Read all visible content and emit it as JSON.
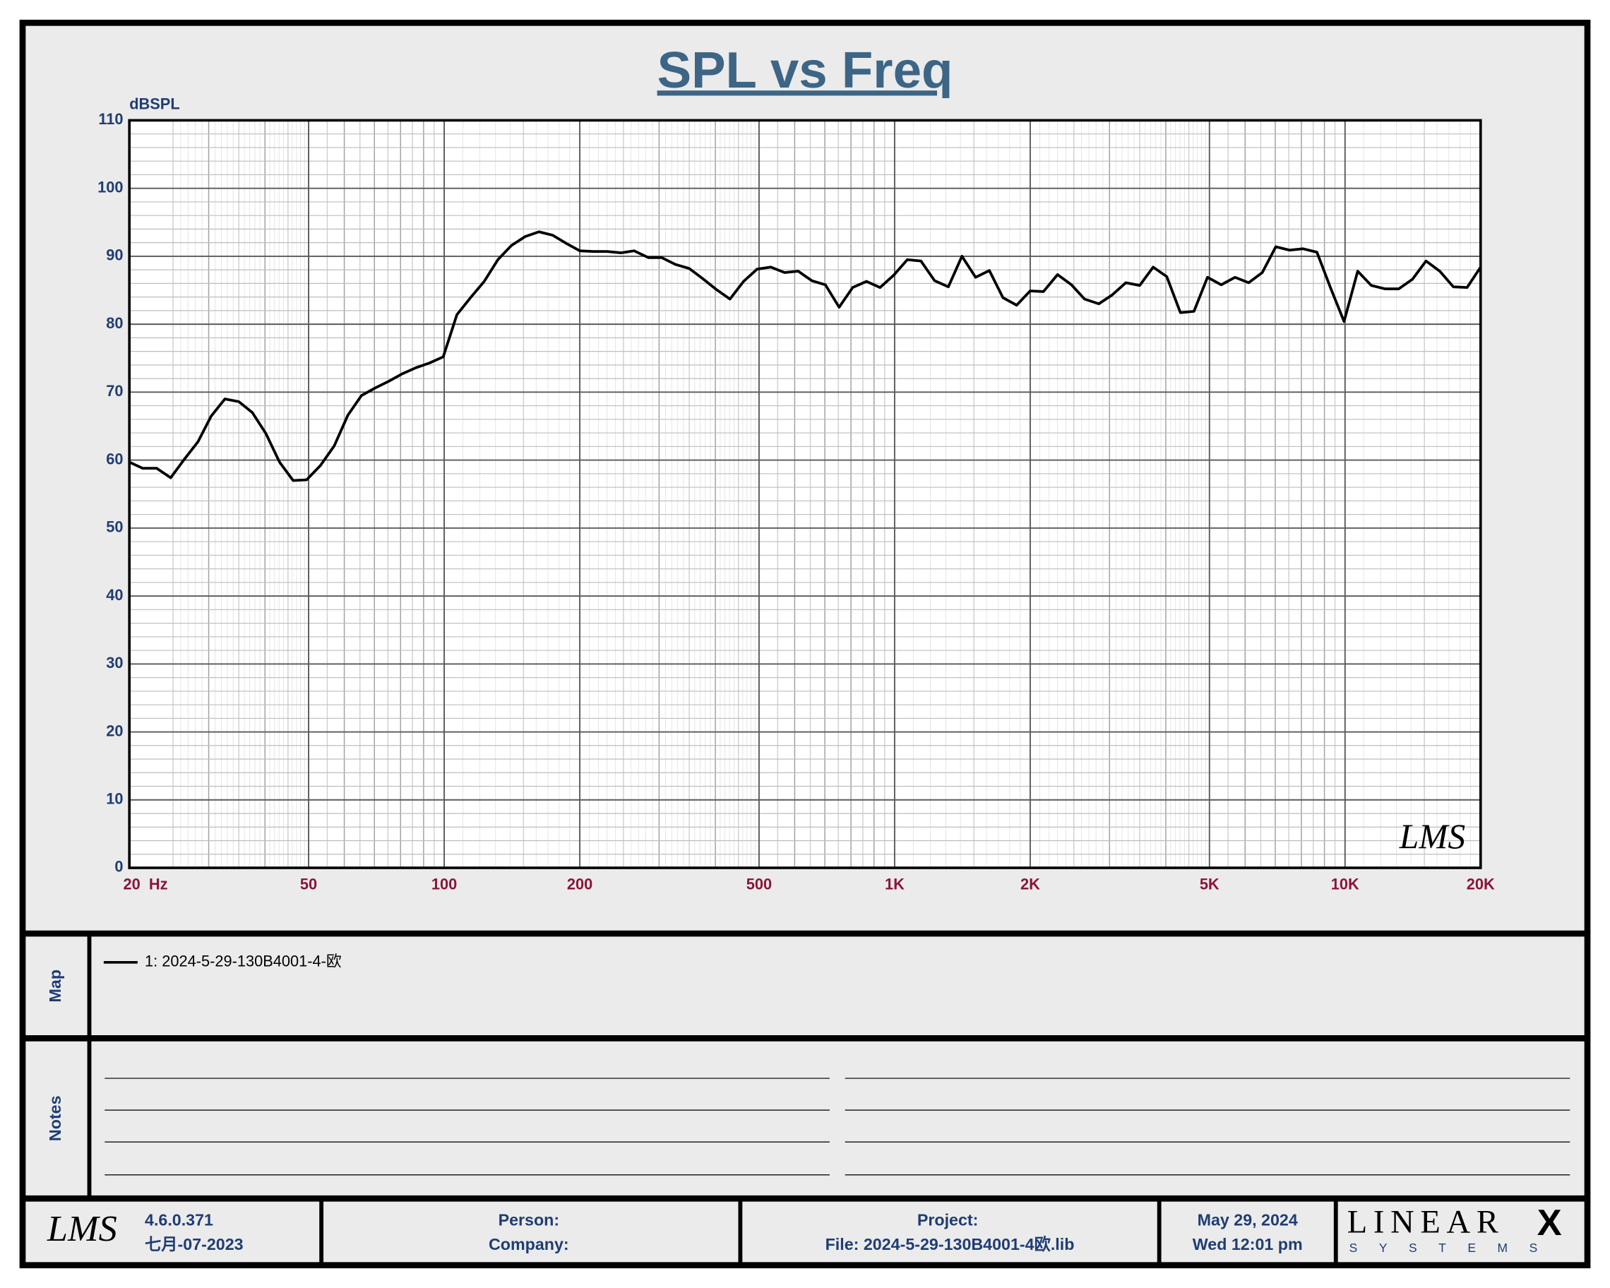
{
  "chart_data": {
    "type": "line",
    "title": "SPL vs Freq",
    "y_label": "dBSPL",
    "watermark": "LMS",
    "x": [
      20,
      21.4,
      23.0,
      24.7,
      26.4,
      28.4,
      30.4,
      32.6,
      35.0,
      37.5,
      40.2,
      43.1,
      46.2,
      49.5,
      53.1,
      57.0,
      61.1,
      65.5,
      70.2,
      75.3,
      80.7,
      86.6,
      92.8,
      99.5,
      106.7,
      114.4,
      122.7,
      131.6,
      141.1,
      151.3,
      162.3,
      174,
      186.6,
      200,
      214,
      230,
      247,
      264,
      284,
      304,
      326,
      350,
      375,
      402,
      431,
      462,
      495,
      531,
      570,
      611,
      655,
      702,
      753,
      807,
      866,
      928,
      995,
      1067,
      1144,
      1227,
      1316,
      1411,
      1513,
      1623,
      1740,
      1866,
      2000,
      2140,
      2300,
      2470,
      2640,
      2840,
      3040,
      3260,
      3500,
      3750,
      4020,
      4310,
      4620,
      4950,
      5310,
      5700,
      6110,
      6550,
      7020,
      7530,
      8070,
      8660,
      9280,
      9950,
      10670,
      11440,
      12270,
      13160,
      14110,
      15130,
      16230,
      17400,
      18660,
      20000
    ],
    "series": [
      {
        "name": "1: 2024-5-29-130B4001-4-欧",
        "color": "#000000",
        "values": [
          59.7,
          58.8,
          58.8,
          57.4,
          60,
          62.7,
          66.5,
          69,
          68.6,
          67,
          63.9,
          59.7,
          57,
          57.1,
          59.2,
          62.1,
          66.6,
          69.5,
          70.6,
          71.6,
          72.7,
          73.6,
          74.3,
          75.2,
          81.4,
          83.9,
          86.3,
          89.5,
          91.6,
          92.9,
          93.6,
          93.1,
          91.9,
          90.8,
          90.7,
          90.7,
          90.5,
          90.8,
          89.8,
          89.8,
          88.8,
          88.2,
          86.7,
          85.1,
          83.7,
          86.3,
          88.1,
          88.4,
          87.6,
          87.8,
          86.4,
          85.8,
          82.5,
          85.4,
          86.3,
          85.4,
          87.2,
          89.5,
          89.3,
          86.4,
          85.5,
          90,
          86.9,
          87.9,
          83.9,
          82.8,
          84.9,
          84.8,
          87.3,
          85.8,
          83.7,
          83,
          84.3,
          86.1,
          85.7,
          88.4,
          87,
          81.7,
          81.9,
          86.9,
          85.8,
          86.9,
          86.1,
          87.6,
          91.4,
          90.9,
          91.1,
          90.6,
          85.4,
          80.4,
          87.8,
          85.7,
          85.2,
          85.2,
          86.6,
          89.3,
          87.8,
          85.5,
          85.4,
          88.4
        ]
      }
    ],
    "xlim": [
      20,
      20000
    ],
    "ylim": [
      0,
      110
    ],
    "x_log": true,
    "grid": true,
    "xticks": [
      {
        "value": 20,
        "label": "20  Hz"
      },
      50,
      100,
      200,
      500,
      {
        "value": 1000,
        "label": "1K"
      },
      {
        "value": 2000,
        "label": "2K"
      },
      {
        "value": 5000,
        "label": "5K"
      },
      {
        "value": 10000,
        "label": "10K"
      },
      {
        "value": 20000,
        "label": "20K"
      }
    ],
    "yticks": [
      0,
      10,
      20,
      30,
      40,
      50,
      60,
      70,
      80,
      90,
      100,
      110
    ]
  },
  "panel": {
    "map_label": "Map",
    "notes_label": "Notes"
  },
  "footer": {
    "version": "4.6.0.371",
    "build_date": "七月-07-2023",
    "person": "Person:",
    "company": "Company:",
    "project": "Project:",
    "file": "File: 2024-5-29-130B4001-4欧.lib",
    "date": "May 29, 2024",
    "time": "Wed 12:01 pm",
    "logo_left": "LMS",
    "logo_right": "LINEAR",
    "logo_right_x": "X",
    "logo_right_sub": "SYSTEMS"
  }
}
